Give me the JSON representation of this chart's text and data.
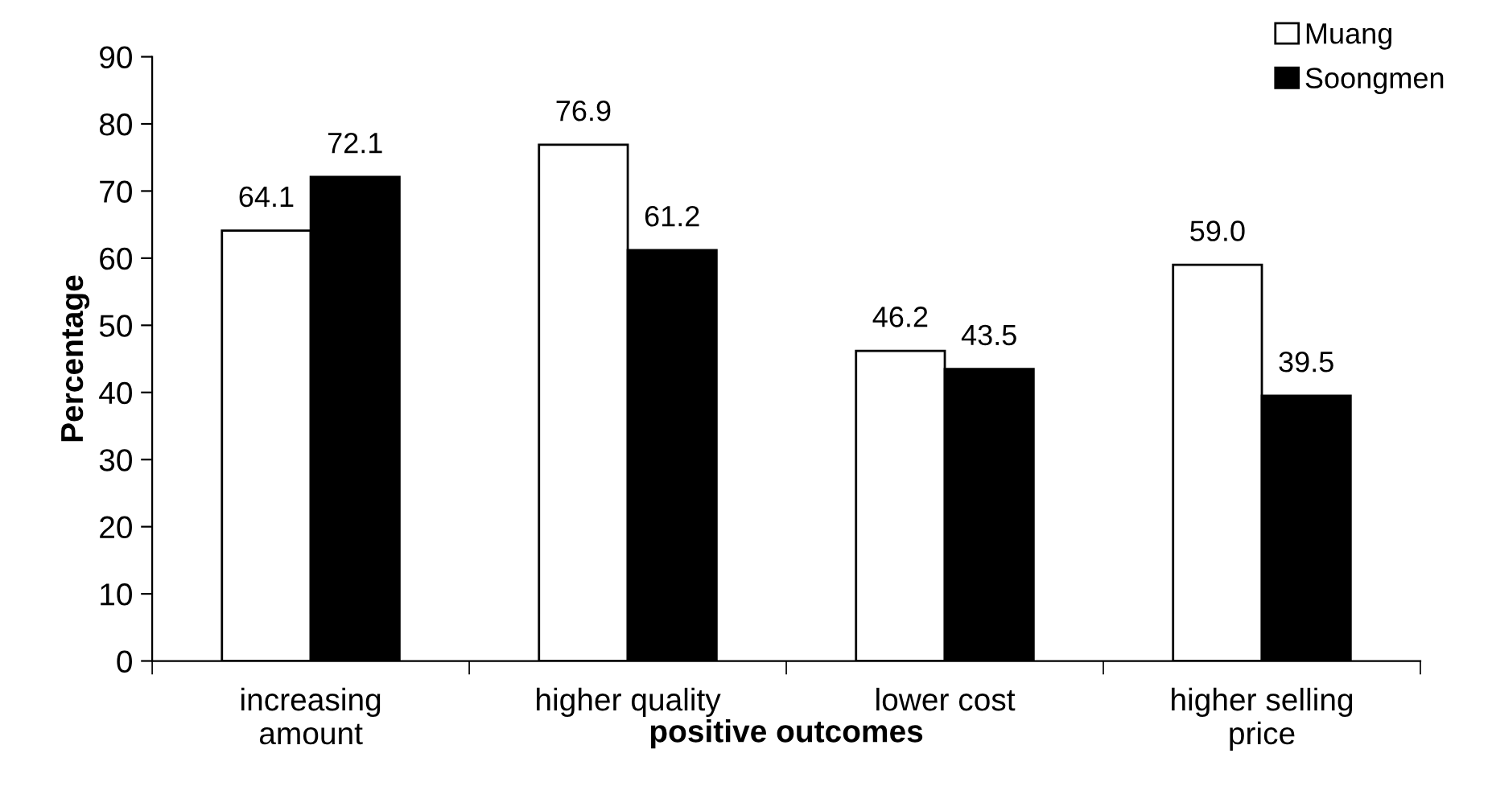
{
  "chart_data": {
    "type": "bar",
    "xlabel": "positive outcomes",
    "ylabel": "Percentage",
    "categories": [
      "increasing\namount",
      "higher quality",
      "lower cost",
      "higher selling\nprice"
    ],
    "series": [
      {
        "name": "Muang",
        "color": "#ffffff",
        "values": [
          64.1,
          76.9,
          46.2,
          59.0
        ],
        "value_labels": [
          "64.1",
          "76.9",
          "46.2",
          "59.0"
        ]
      },
      {
        "name": "Soongmen",
        "color": "#000000",
        "values": [
          72.1,
          61.2,
          43.5,
          39.5
        ],
        "value_labels": [
          "72.1",
          "61.2",
          "43.5",
          "39.5"
        ]
      }
    ],
    "ylim": [
      0,
      90
    ],
    "yticks": [
      0,
      10,
      20,
      30,
      40,
      50,
      60,
      70,
      80,
      90
    ],
    "grid": false,
    "legend": "top right"
  }
}
